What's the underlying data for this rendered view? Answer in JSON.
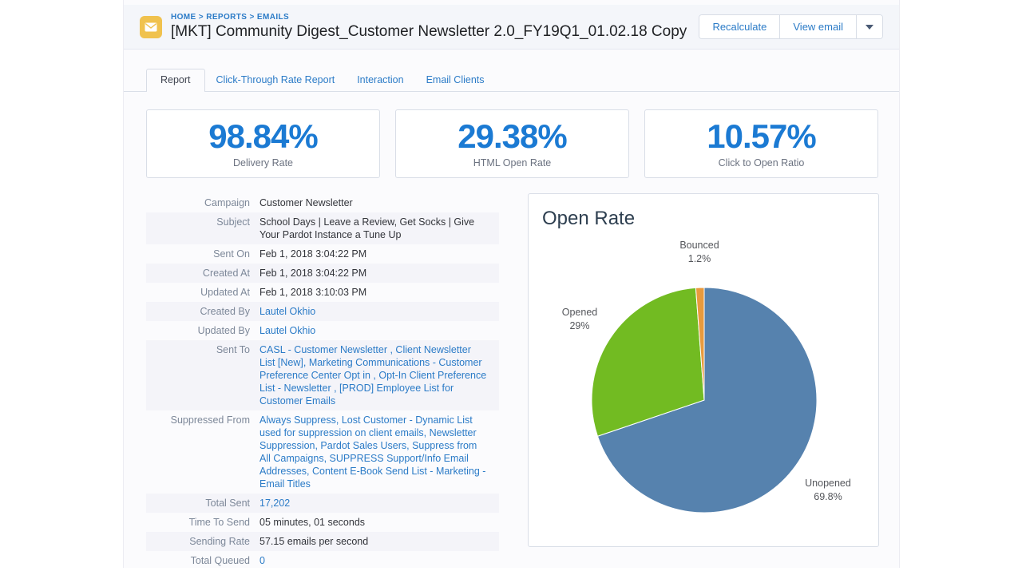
{
  "header": {
    "breadcrumb": "HOME > REPORTS > EMAILS",
    "title": "[MKT] Community Digest_Customer Newsletter 2.0_FY19Q1_01.02.18 Copy",
    "recalculate_label": "Recalculate",
    "view_email_label": "View email",
    "icon": "envelope-icon",
    "icon_color": "#f0c24e"
  },
  "tabs": {
    "report": "Report",
    "click_through": "Click-Through Rate Report",
    "interaction": "Interaction",
    "email_clients": "Email Clients",
    "active_tab": "Report"
  },
  "stats": [
    {
      "value": "98.84%",
      "label": "Delivery Rate"
    },
    {
      "value": "29.38%",
      "label": "HTML Open Rate"
    },
    {
      "value": "10.57%",
      "label": "Click to Open Ratio"
    }
  ],
  "details": {
    "rows": [
      {
        "label": "Campaign",
        "value": "Customer Newsletter"
      },
      {
        "label": "Subject",
        "value": "School Days | Leave a Review, Get Socks | Give Your Pardot Instance a Tune Up"
      },
      {
        "label": "Sent On",
        "value": "Feb 1, 2018 3:04:22 PM"
      },
      {
        "label": "Created At",
        "value": "Feb 1, 2018 3:04:22 PM"
      },
      {
        "label": "Updated At",
        "value": "Feb 1, 2018 3:10:03 PM"
      },
      {
        "label": "Created By",
        "value": "Lautel Okhio"
      },
      {
        "label": "Updated By",
        "value": "Lautel Okhio"
      },
      {
        "label": "Sent To",
        "value": "CASL - Customer Newsletter , Client Newsletter List [New], Marketing Communications - Customer Preference Center Opt in , Opt-In Client Preference List - Newsletter , [PROD] Employee List for Customer Emails"
      },
      {
        "label": "Suppressed From",
        "value": "Always Suppress, Lost Customer - Dynamic List used for suppression on client emails, Newsletter Suppression, Pardot Sales Users, Suppress from All Campaigns, SUPPRESS Support/Info Email Addresses, Content E-Book Send List - Marketing - Email Titles"
      },
      {
        "label": "Total Sent",
        "value": "17,202"
      },
      {
        "label": "Time To Send",
        "value": "05 minutes, 01 seconds"
      },
      {
        "label": "Sending Rate",
        "value": "57.15 emails per second"
      },
      {
        "label": "Total Queued",
        "value": "0"
      }
    ]
  },
  "chart_data": {
    "type": "pie",
    "title": "Open Rate",
    "start_angle_deg": -90,
    "direction": "clockwise",
    "legend": "none",
    "slices": [
      {
        "label": "Unopened",
        "value": 69.8,
        "pct_label": "69.8%",
        "color": "#5682ae"
      },
      {
        "label": "Opened",
        "value": 29,
        "pct_label": "29%",
        "color": "#72bb22"
      },
      {
        "label": "Bounced",
        "value": 1.2,
        "pct_label": "1.2%",
        "color": "#e89a3d"
      }
    ]
  },
  "colors": {
    "accent_blue": "#1b7ad3",
    "link_blue": "#2b7bc7",
    "header_band": "#f4f6fa",
    "row_shade": "#f4f4f9"
  }
}
